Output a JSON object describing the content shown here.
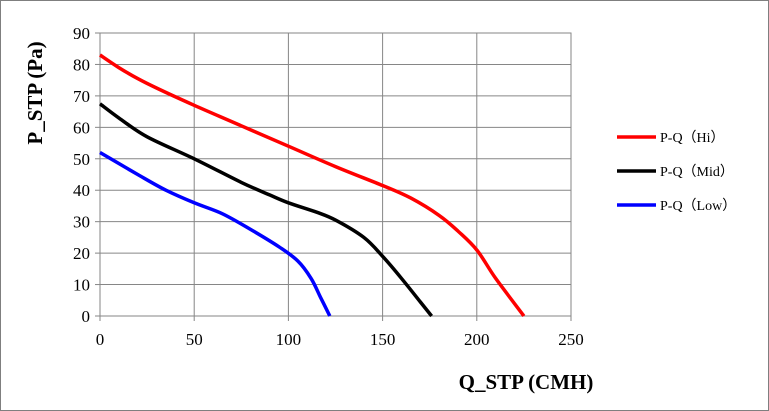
{
  "chart_data": {
    "type": "line",
    "title": "",
    "xlabel": "Q_STP (CMH)",
    "ylabel": "P_STP (Pa)",
    "xlim": [
      0,
      250
    ],
    "ylim": [
      0,
      90
    ],
    "xticks": [
      0,
      50,
      100,
      150,
      200,
      250
    ],
    "yticks": [
      0,
      10,
      20,
      30,
      40,
      50,
      60,
      70,
      80,
      90
    ],
    "grid": true,
    "legend_position": "right",
    "series": [
      {
        "name": "P-Q（Hi）",
        "color": "#ff0000",
        "points": [
          [
            0,
            83
          ],
          [
            10,
            79
          ],
          [
            20,
            75.5
          ],
          [
            30,
            72.5
          ],
          [
            50,
            67
          ],
          [
            75,
            60.5
          ],
          [
            100,
            54
          ],
          [
            125,
            47.5
          ],
          [
            150,
            41.5
          ],
          [
            165,
            37.5
          ],
          [
            180,
            32
          ],
          [
            190,
            27
          ],
          [
            200,
            21
          ],
          [
            210,
            12
          ],
          [
            225,
            0
          ]
        ]
      },
      {
        "name": "P-Q（Mid）",
        "color": "#000000",
        "points": [
          [
            0,
            67.5
          ],
          [
            10,
            63
          ],
          [
            25,
            57
          ],
          [
            50,
            50
          ],
          [
            75,
            42.5
          ],
          [
            90,
            38.5
          ],
          [
            100,
            36
          ],
          [
            115,
            33
          ],
          [
            125,
            30.5
          ],
          [
            140,
            25
          ],
          [
            150,
            19
          ],
          [
            160,
            12
          ],
          [
            170,
            4.5
          ],
          [
            176,
            0
          ]
        ]
      },
      {
        "name": "P-Q（Low）",
        "color": "#0000ff",
        "points": [
          [
            0,
            52
          ],
          [
            20,
            45
          ],
          [
            35,
            40
          ],
          [
            50,
            36
          ],
          [
            65,
            32.5
          ],
          [
            80,
            27.5
          ],
          [
            95,
            22
          ],
          [
            105,
            17.5
          ],
          [
            112,
            12
          ],
          [
            117,
            6
          ],
          [
            122,
            0
          ]
        ]
      }
    ]
  }
}
